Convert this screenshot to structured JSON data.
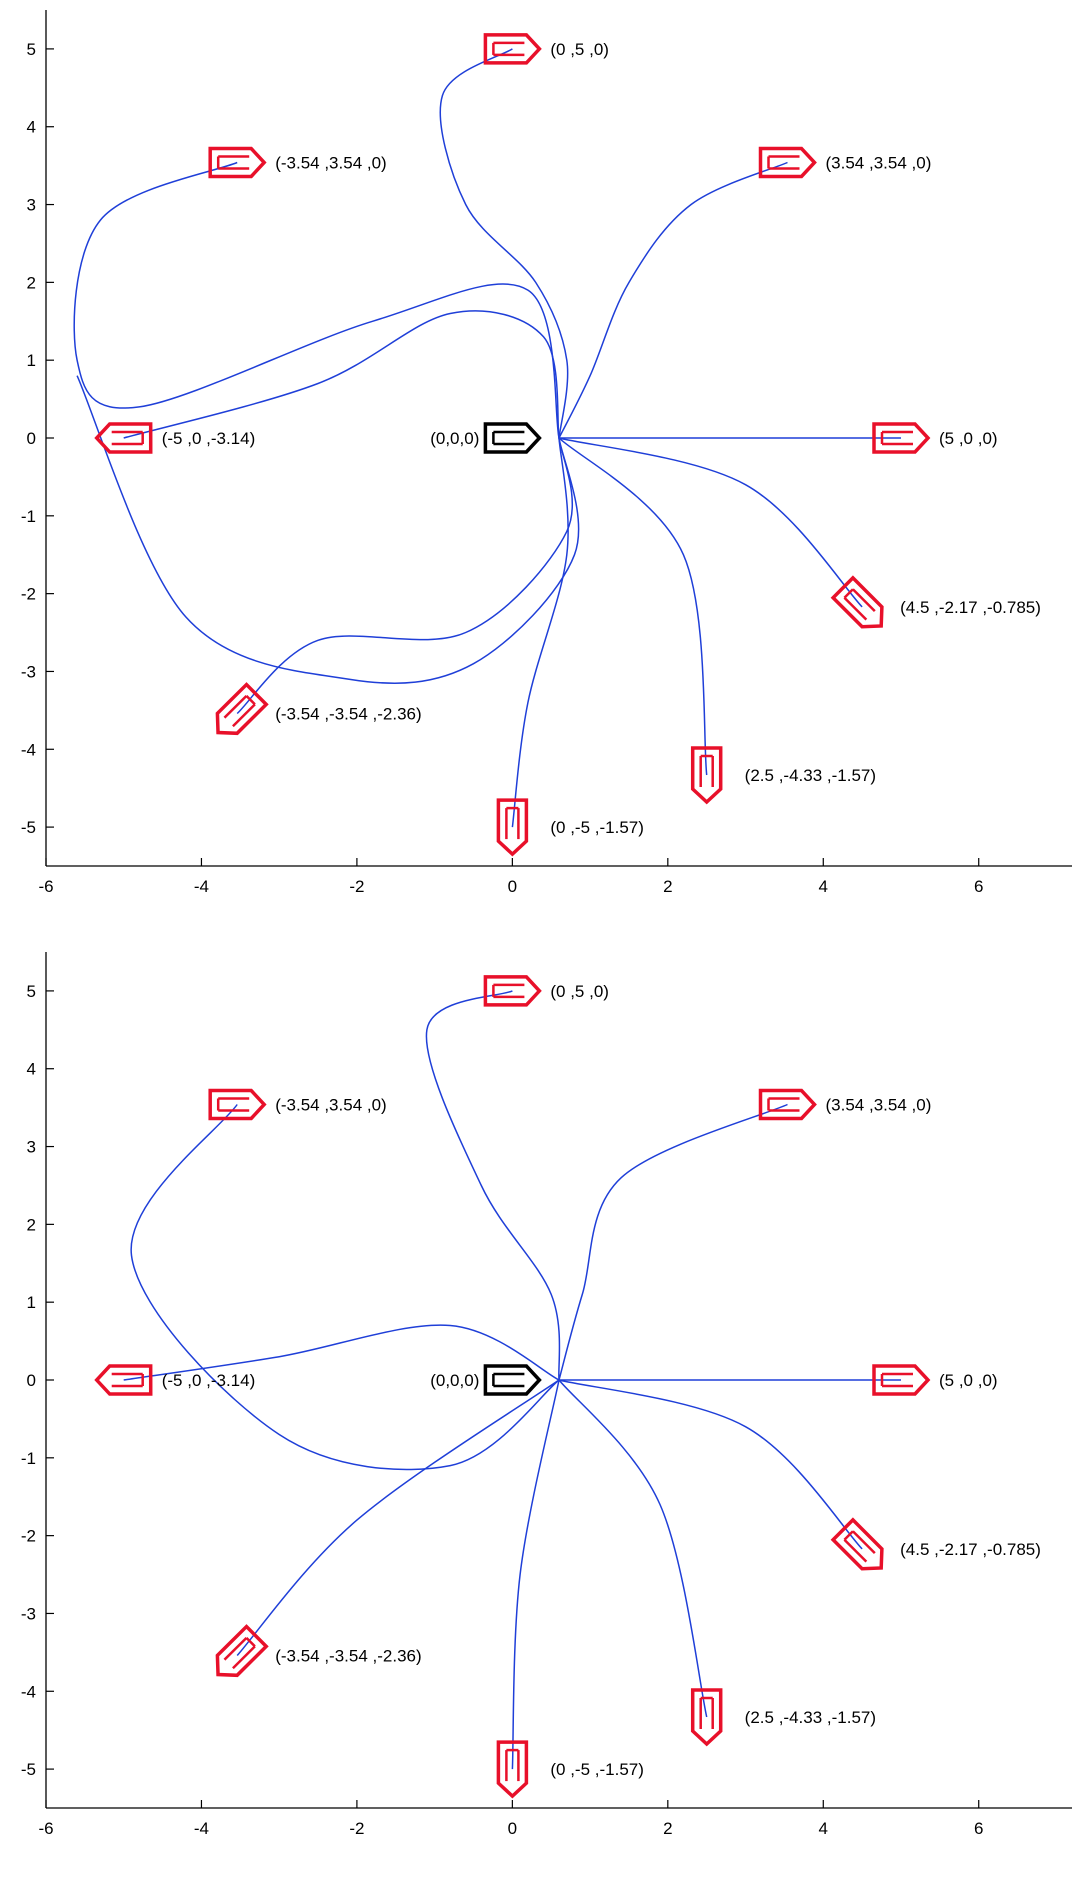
{
  "chart_data": [
    {
      "type": "line",
      "title": "",
      "xlabel": "",
      "ylabel": "",
      "xlim": [
        -6,
        7.2
      ],
      "ylim": [
        -5.5,
        5.5
      ],
      "xticks": [
        "-6",
        "-4",
        "-2",
        "0",
        "2",
        "4",
        "6"
      ],
      "yticks": [
        "5",
        "4",
        "3",
        "2",
        "1",
        "0",
        "-1",
        "-2",
        "-3",
        "-4",
        "-5"
      ],
      "grid": false,
      "start_pose": {
        "x": 0,
        "y": 0,
        "theta": 0,
        "label": "(0,0,0)",
        "color": "#000000"
      },
      "goal_color": "#e8102a",
      "path_color": "#1f3fd8",
      "goals": [
        {
          "x": 0,
          "y": 5,
          "theta": 0,
          "label": "(0 ,5 ,0)"
        },
        {
          "x": -3.54,
          "y": 3.54,
          "theta": 0,
          "label": "(-3.54 ,3.54 ,0)"
        },
        {
          "x": 3.54,
          "y": 3.54,
          "theta": 0,
          "label": "(3.54 ,3.54 ,0)"
        },
        {
          "x": -5,
          "y": 0,
          "theta": -3.14,
          "label": "(-5 ,0 ,-3.14)"
        },
        {
          "x": 5,
          "y": 0,
          "theta": 0,
          "label": "(5 ,0 ,0)"
        },
        {
          "x": 4.5,
          "y": -2.17,
          "theta": -0.785,
          "label": "(4.5 ,-2.17 ,-0.785)"
        },
        {
          "x": -3.54,
          "y": -3.54,
          "theta": -2.36,
          "label": "(-3.54 ,-3.54 ,-2.36)"
        },
        {
          "x": 2.5,
          "y": -4.33,
          "theta": -1.57,
          "label": "(2.5 ,-4.33 ,-1.57)"
        },
        {
          "x": 0,
          "y": -5,
          "theta": -1.57,
          "label": "(0 ,-5 ,-1.57)"
        }
      ],
      "paths": [
        [
          [
            0.6,
            0
          ],
          [
            0.7,
            1
          ],
          [
            0.3,
            2
          ],
          [
            -0.6,
            3
          ],
          [
            -0.9,
            4.4
          ],
          [
            0,
            5
          ]
        ],
        [
          [
            0.6,
            0
          ],
          [
            0.2,
            1.9
          ],
          [
            -1.8,
            1.5
          ],
          [
            -4.8,
            0.4
          ],
          [
            -5.6,
            1
          ],
          [
            -5.3,
            2.8
          ],
          [
            -3.54,
            3.54
          ]
        ],
        [
          [
            0.6,
            0
          ],
          [
            1,
            0.8
          ],
          [
            1.5,
            2
          ],
          [
            2.3,
            3
          ],
          [
            3.54,
            3.54
          ]
        ],
        [
          [
            0.6,
            0
          ],
          [
            0.4,
            1.3
          ],
          [
            -0.8,
            1.6
          ],
          [
            -2.5,
            0.7
          ],
          [
            -5,
            0
          ]
        ],
        [
          [
            0.6,
            0
          ],
          [
            5,
            0
          ]
        ],
        [
          [
            0.6,
            0
          ],
          [
            3,
            -0.6
          ],
          [
            4.5,
            -2.17
          ]
        ],
        [
          [
            0.6,
            0
          ],
          [
            0.7,
            -1.2
          ],
          [
            -0.6,
            -2.5
          ],
          [
            -2.5,
            -2.6
          ],
          [
            -3.54,
            -3.54
          ]
        ],
        [
          [
            0.6,
            0
          ],
          [
            0.8,
            -1.5
          ],
          [
            -0.5,
            -2.9
          ],
          [
            -2.1,
            -3.1
          ],
          [
            -4.2,
            -2.3
          ],
          [
            -5.6,
            0.8
          ]
        ],
        [
          [
            0.6,
            0
          ],
          [
            2.2,
            -1.5
          ],
          [
            2.5,
            -4.33
          ]
        ],
        [
          [
            0.6,
            0
          ],
          [
            0.7,
            -1.5
          ],
          [
            0.2,
            -3.4
          ],
          [
            0,
            -5
          ]
        ]
      ]
    },
    {
      "type": "line",
      "title": "",
      "xlabel": "",
      "ylabel": "",
      "xlim": [
        -6,
        7.2
      ],
      "ylim": [
        -5.5,
        5.5
      ],
      "xticks": [
        "-6",
        "-4",
        "-2",
        "0",
        "2",
        "4",
        "6"
      ],
      "yticks": [
        "5",
        "4",
        "3",
        "2",
        "1",
        "0",
        "-1",
        "-2",
        "-3",
        "-4",
        "-5"
      ],
      "grid": false,
      "start_pose": {
        "x": 0,
        "y": 0,
        "theta": 0,
        "label": "(0,0,0)",
        "color": "#000000"
      },
      "goal_color": "#e8102a",
      "path_color": "#1f3fd8",
      "goals": [
        {
          "x": 0,
          "y": 5,
          "theta": 0,
          "label": "(0 ,5 ,0)"
        },
        {
          "x": -3.54,
          "y": 3.54,
          "theta": 0,
          "label": "(-3.54 ,3.54 ,0)"
        },
        {
          "x": 3.54,
          "y": 3.54,
          "theta": 0,
          "label": "(3.54 ,3.54 ,0)"
        },
        {
          "x": -5,
          "y": 0,
          "theta": -3.14,
          "label": "(-5 ,0 ,-3.14)"
        },
        {
          "x": 5,
          "y": 0,
          "theta": 0,
          "label": "(5 ,0 ,0)"
        },
        {
          "x": 4.5,
          "y": -2.17,
          "theta": -0.785,
          "label": "(4.5 ,-2.17 ,-0.785)"
        },
        {
          "x": -3.54,
          "y": -3.54,
          "theta": -2.36,
          "label": "(-3.54 ,-3.54 ,-2.36)"
        },
        {
          "x": 2.5,
          "y": -4.33,
          "theta": -1.57,
          "label": "(2.5 ,-4.33 ,-1.57)"
        },
        {
          "x": 0,
          "y": -5,
          "theta": -1.57,
          "label": "(0 ,-5 ,-1.57)"
        }
      ],
      "paths": [
        [
          [
            0.6,
            0
          ],
          [
            0.5,
            1.1
          ],
          [
            -0.4,
            2.5
          ],
          [
            -1.1,
            4.5
          ],
          [
            0,
            5
          ]
        ],
        [
          [
            0.6,
            0
          ],
          [
            -0.8,
            -1.1
          ],
          [
            -3,
            -0.7
          ],
          [
            -4.9,
            1.6
          ],
          [
            -3.54,
            3.54
          ]
        ],
        [
          [
            0.6,
            0
          ],
          [
            0.9,
            1.1
          ],
          [
            1.4,
            2.6
          ],
          [
            3.54,
            3.54
          ]
        ],
        [
          [
            0.6,
            0
          ],
          [
            -0.8,
            0.7
          ],
          [
            -3,
            0.3
          ],
          [
            -5,
            0
          ]
        ],
        [
          [
            0.6,
            0
          ],
          [
            5,
            0
          ]
        ],
        [
          [
            0.6,
            0
          ],
          [
            3,
            -0.6
          ],
          [
            4.5,
            -2.17
          ]
        ],
        [
          [
            0.6,
            0
          ],
          [
            -2,
            -1.8
          ],
          [
            -3.54,
            -3.54
          ]
        ],
        [
          [
            0.6,
            0
          ],
          [
            1.9,
            -1.6
          ],
          [
            2.5,
            -4.33
          ]
        ],
        [
          [
            0.6,
            0
          ],
          [
            0.1,
            -2.5
          ],
          [
            0,
            -5
          ]
        ]
      ]
    }
  ]
}
